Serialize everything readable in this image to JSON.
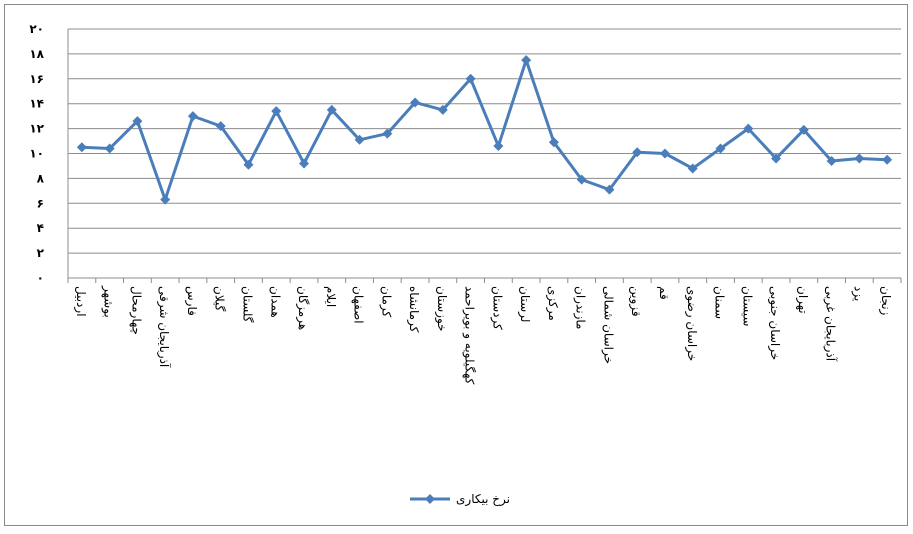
{
  "chart_data": {
    "type": "line",
    "categories": [
      "اردبیل",
      "بوشهر",
      "چهارمحال",
      "آذربایجان شرقی",
      "فارس",
      "گیلان",
      "گلستان",
      "همدان",
      "هرمزگان",
      "ایلام",
      "اصفهان",
      "کرمان",
      "کرمانشاه",
      "خوزستان",
      "کهگیلویه و بویراحمد",
      "کردستان",
      "لرستان",
      "مرکزی",
      "مازندران",
      "خراسان شمالی",
      "قزوین",
      "قم",
      "خراسان رضوی",
      "سمنان",
      "سیستان",
      "خراسان جنوبی",
      "تهران",
      "آذربایجان غربی",
      "یزد",
      "زنجان"
    ],
    "series": [
      {
        "name": "نرخ بیکاری",
        "color": "#4a7ebb",
        "values": [
          10.5,
          10.4,
          12.6,
          6.3,
          13.0,
          12.2,
          9.1,
          13.4,
          9.2,
          13.5,
          11.1,
          11.6,
          14.1,
          13.5,
          16.0,
          10.6,
          17.5,
          10.9,
          7.9,
          7.1,
          10.1,
          10.0,
          8.8,
          10.4,
          12.0,
          9.6,
          11.9,
          9.4,
          9.6,
          9.5
        ]
      }
    ],
    "ylim": [
      0,
      20
    ],
    "yticks": [
      {
        "value": 0,
        "label": "۰"
      },
      {
        "value": 2,
        "label": "۲"
      },
      {
        "value": 4,
        "label": "۴"
      },
      {
        "value": 6,
        "label": "۶"
      },
      {
        "value": 8,
        "label": "۸"
      },
      {
        "value": 10,
        "label": "۱۰"
      },
      {
        "value": 12,
        "label": "۱۲"
      },
      {
        "value": 14,
        "label": "۱۴"
      },
      {
        "value": 16,
        "label": "۱۶"
      },
      {
        "value": 18,
        "label": "۱۸"
      },
      {
        "value": 20,
        "label": "۲۰"
      }
    ],
    "grid": true,
    "legend": "bottom"
  }
}
